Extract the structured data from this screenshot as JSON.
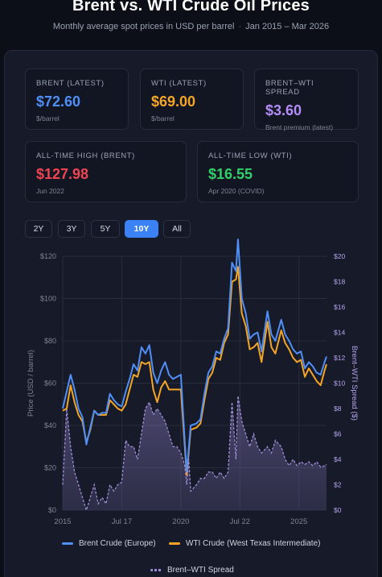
{
  "header": {
    "title": "Brent vs. WTI Crude Oil Prices",
    "subtitle_left": "Monthly average spot prices in USD per barrel",
    "subtitle_sep": "·",
    "subtitle_right": "Jan 2015 – Mar 2026"
  },
  "cards": [
    {
      "label": "BRENT (LATEST)",
      "value": "$72.60",
      "sub": "$/barrel",
      "color": "#4f8ff7"
    },
    {
      "label": "WTI (LATEST)",
      "value": "$69.00",
      "sub": "$/barrel",
      "color": "#f5a524"
    },
    {
      "label": "BRENT–WTI SPREAD",
      "value": "$3.60",
      "sub": "Brent premium (latest)",
      "color": "#b48cf7"
    },
    {
      "label": "ALL-TIME HIGH (BRENT)",
      "value": "$127.98",
      "sub": "Jun 2022",
      "color": "#f04452"
    },
    {
      "label": "ALL-TIME LOW (WTI)",
      "value": "$16.55",
      "sub": "Apr 2020 (COVID)",
      "color": "#2fcf6a"
    }
  ],
  "range_buttons": [
    {
      "label": "2Y",
      "active": false
    },
    {
      "label": "3Y",
      "active": false
    },
    {
      "label": "5Y",
      "active": false
    },
    {
      "label": "10Y",
      "active": true
    },
    {
      "label": "All",
      "active": false
    }
  ],
  "legend": {
    "brent": "Brent Crude (Europe)",
    "wti": "WTI Crude (West Texas Intermediate)",
    "spread": "Brent–WTI Spread"
  },
  "chart_data": {
    "type": "line",
    "x_ticks": [
      "2015",
      "Jul 17",
      "2020",
      "Jul 22",
      "2025"
    ],
    "y_left_ticks": [
      "$0",
      "$20",
      "$40",
      "$60",
      "$80",
      "$100",
      "$120"
    ],
    "y_right_ticks": [
      "$0",
      "$2",
      "$4",
      "$6",
      "$8",
      "$10",
      "$12",
      "$14",
      "$16",
      "$18",
      "$20"
    ],
    "ylabel_left": "Price (USD / barrel)",
    "ylabel_right": "Brent–WTI Spread ($)",
    "ylim_left": [
      0,
      120
    ],
    "ylim_right": [
      0,
      20
    ],
    "x_range": [
      "2015-01",
      "2026-03"
    ],
    "grid": true,
    "colors": {
      "brent": "#4f8ff7",
      "wti": "#f5a524",
      "spread": "#9d8cd6"
    },
    "series": [
      {
        "name": "Brent Crude (Europe)",
        "axis": "left",
        "points": [
          [
            "2015-01",
            48
          ],
          [
            "2015-03",
            56
          ],
          [
            "2015-05",
            64
          ],
          [
            "2015-07",
            57
          ],
          [
            "2015-09",
            48
          ],
          [
            "2015-11",
            44
          ],
          [
            "2016-01",
            31
          ],
          [
            "2016-03",
            39
          ],
          [
            "2016-05",
            47
          ],
          [
            "2016-07",
            45
          ],
          [
            "2016-09",
            46
          ],
          [
            "2016-11",
            46
          ],
          [
            "2017-01",
            55
          ],
          [
            "2017-03",
            52
          ],
          [
            "2017-05",
            50
          ],
          [
            "2017-07",
            49
          ],
          [
            "2017-09",
            56
          ],
          [
            "2017-11",
            62
          ],
          [
            "2018-01",
            69
          ],
          [
            "2018-03",
            66
          ],
          [
            "2018-05",
            77
          ],
          [
            "2018-07",
            74
          ],
          [
            "2018-09",
            78
          ],
          [
            "2018-11",
            65
          ],
          [
            "2019-01",
            60
          ],
          [
            "2019-03",
            66
          ],
          [
            "2019-05",
            70
          ],
          [
            "2019-07",
            64
          ],
          [
            "2019-09",
            62
          ],
          [
            "2019-11",
            63
          ],
          [
            "2020-01",
            64
          ],
          [
            "2020-03",
            32
          ],
          [
            "2020-04",
            18
          ],
          [
            "2020-06",
            40
          ],
          [
            "2020-09",
            41
          ],
          [
            "2020-11",
            43
          ],
          [
            "2021-01",
            55
          ],
          [
            "2021-03",
            65
          ],
          [
            "2021-05",
            68
          ],
          [
            "2021-07",
            75
          ],
          [
            "2021-09",
            74
          ],
          [
            "2021-11",
            81
          ],
          [
            "2022-01",
            86
          ],
          [
            "2022-03",
            117
          ],
          [
            "2022-05",
            113
          ],
          [
            "2022-06",
            128
          ],
          [
            "2022-08",
            100
          ],
          [
            "2022-10",
            93
          ],
          [
            "2022-12",
            81
          ],
          [
            "2023-02",
            83
          ],
          [
            "2023-04",
            84
          ],
          [
            "2023-06",
            75
          ],
          [
            "2023-09",
            94
          ],
          [
            "2023-11",
            83
          ],
          [
            "2024-01",
            80
          ],
          [
            "2024-04",
            90
          ],
          [
            "2024-06",
            83
          ],
          [
            "2024-08",
            80
          ],
          [
            "2024-10",
            76
          ],
          [
            "2024-12",
            74
          ],
          [
            "2025-02",
            75
          ],
          [
            "2025-04",
            67
          ],
          [
            "2025-06",
            70
          ],
          [
            "2025-08",
            68
          ],
          [
            "2025-10",
            65
          ],
          [
            "2025-12",
            64
          ],
          [
            "2026-02",
            70
          ],
          [
            "2026-03",
            72.6
          ]
        ]
      },
      {
        "name": "WTI Crude (West Texas Intermediate)",
        "axis": "left",
        "points": [
          [
            "2015-01",
            47
          ],
          [
            "2015-03",
            48
          ],
          [
            "2015-05",
            59
          ],
          [
            "2015-07",
            51
          ],
          [
            "2015-09",
            45
          ],
          [
            "2015-11",
            42
          ],
          [
            "2016-01",
            32
          ],
          [
            "2016-03",
            38
          ],
          [
            "2016-05",
            47
          ],
          [
            "2016-07",
            45
          ],
          [
            "2016-09",
            45
          ],
          [
            "2016-11",
            45
          ],
          [
            "2017-01",
            52
          ],
          [
            "2017-03",
            50
          ],
          [
            "2017-05",
            48
          ],
          [
            "2017-07",
            47
          ],
          [
            "2017-09",
            50
          ],
          [
            "2017-11",
            57
          ],
          [
            "2018-01",
            64
          ],
          [
            "2018-03",
            63
          ],
          [
            "2018-05",
            70
          ],
          [
            "2018-07",
            69
          ],
          [
            "2018-09",
            70
          ],
          [
            "2018-11",
            57
          ],
          [
            "2019-01",
            51
          ],
          [
            "2019-03",
            58
          ],
          [
            "2019-05",
            61
          ],
          [
            "2019-07",
            57
          ],
          [
            "2019-09",
            57
          ],
          [
            "2019-11",
            57
          ],
          [
            "2020-01",
            57
          ],
          [
            "2020-03",
            30
          ],
          [
            "2020-04",
            16.55
          ],
          [
            "2020-06",
            38
          ],
          [
            "2020-09",
            39
          ],
          [
            "2020-11",
            41
          ],
          [
            "2021-01",
            52
          ],
          [
            "2021-03",
            62
          ],
          [
            "2021-05",
            65
          ],
          [
            "2021-07",
            72
          ],
          [
            "2021-09",
            71
          ],
          [
            "2021-11",
            79
          ],
          [
            "2022-01",
            83
          ],
          [
            "2022-03",
            108
          ],
          [
            "2022-05",
            109
          ],
          [
            "2022-06",
            115
          ],
          [
            "2022-08",
            93
          ],
          [
            "2022-10",
            87
          ],
          [
            "2022-12",
            76
          ],
          [
            "2023-02",
            77
          ],
          [
            "2023-04",
            79
          ],
          [
            "2023-06",
            70
          ],
          [
            "2023-09",
            89
          ],
          [
            "2023-11",
            77
          ],
          [
            "2024-01",
            74
          ],
          [
            "2024-04",
            85
          ],
          [
            "2024-06",
            79
          ],
          [
            "2024-08",
            76
          ],
          [
            "2024-10",
            72
          ],
          [
            "2024-12",
            70
          ],
          [
            "2025-02",
            71
          ],
          [
            "2025-04",
            63
          ],
          [
            "2025-06",
            67
          ],
          [
            "2025-08",
            64
          ],
          [
            "2025-10",
            61
          ],
          [
            "2025-12",
            59
          ],
          [
            "2026-02",
            66
          ],
          [
            "2026-03",
            69.0
          ]
        ]
      },
      {
        "name": "Brent–WTI Spread",
        "axis": "right",
        "points": [
          [
            "2015-01",
            2
          ],
          [
            "2015-03",
            8
          ],
          [
            "2015-05",
            5
          ],
          [
            "2015-07",
            3
          ],
          [
            "2015-09",
            2
          ],
          [
            "2015-11",
            1
          ],
          [
            "2016-01",
            0
          ],
          [
            "2016-03",
            1
          ],
          [
            "2016-05",
            2
          ],
          [
            "2016-07",
            0.5
          ],
          [
            "2016-09",
            1
          ],
          [
            "2016-11",
            0.5
          ],
          [
            "2017-01",
            2
          ],
          [
            "2017-03",
            1.5
          ],
          [
            "2017-05",
            2
          ],
          [
            "2017-07",
            2.2
          ],
          [
            "2017-09",
            5.5
          ],
          [
            "2017-11",
            5
          ],
          [
            "2018-01",
            5
          ],
          [
            "2018-03",
            4
          ],
          [
            "2018-05",
            6
          ],
          [
            "2018-07",
            8
          ],
          [
            "2018-09",
            8.5
          ],
          [
            "2018-11",
            7.5
          ],
          [
            "2019-01",
            8
          ],
          [
            "2019-03",
            7.5
          ],
          [
            "2019-05",
            7
          ],
          [
            "2019-07",
            6
          ],
          [
            "2019-09",
            5
          ],
          [
            "2019-11",
            5
          ],
          [
            "2020-01",
            4.5
          ],
          [
            "2020-03",
            3.5
          ],
          [
            "2020-04",
            2
          ],
          [
            "2020-05",
            4
          ],
          [
            "2020-06",
            1.5
          ],
          [
            "2020-09",
            2
          ],
          [
            "2020-11",
            2.5
          ],
          [
            "2021-01",
            2.5
          ],
          [
            "2021-03",
            3
          ],
          [
            "2021-05",
            3
          ],
          [
            "2021-07",
            2.5
          ],
          [
            "2021-09",
            3
          ],
          [
            "2021-11",
            2.5
          ],
          [
            "2022-01",
            3
          ],
          [
            "2022-03",
            8.5
          ],
          [
            "2022-05",
            4
          ],
          [
            "2022-06",
            9
          ],
          [
            "2022-08",
            7
          ],
          [
            "2022-10",
            6
          ],
          [
            "2022-12",
            5
          ],
          [
            "2023-02",
            6
          ],
          [
            "2023-04",
            5
          ],
          [
            "2023-06",
            4.5
          ],
          [
            "2023-09",
            5
          ],
          [
            "2023-11",
            4.5
          ],
          [
            "2024-01",
            5.5
          ],
          [
            "2024-04",
            5
          ],
          [
            "2024-06",
            4
          ],
          [
            "2024-08",
            3.5
          ],
          [
            "2024-10",
            4
          ],
          [
            "2024-12",
            3.5
          ],
          [
            "2025-02",
            3.8
          ],
          [
            "2025-04",
            3.6
          ],
          [
            "2025-06",
            3.8
          ],
          [
            "2025-08",
            3.5
          ],
          [
            "2025-10",
            3.8
          ],
          [
            "2025-12",
            3.4
          ],
          [
            "2026-02",
            3.5
          ],
          [
            "2026-03",
            3.6
          ]
        ]
      }
    ]
  }
}
